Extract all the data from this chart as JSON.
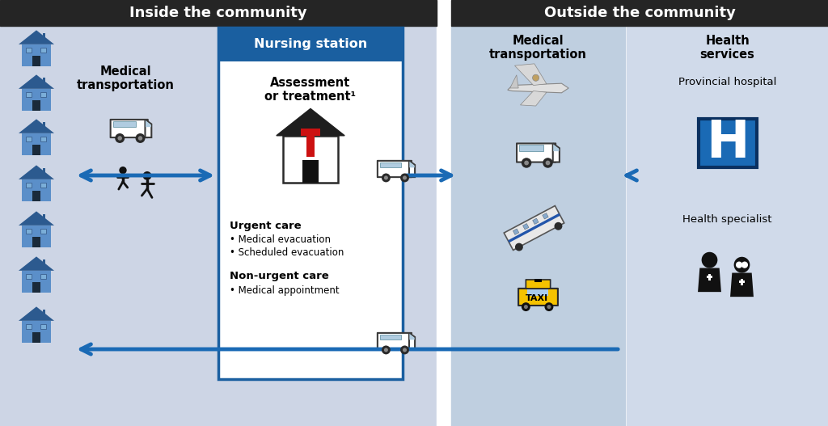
{
  "fig_width": 10.24,
  "fig_height": 5.27,
  "dpi": 100,
  "header_color": "#252525",
  "header_text_color": "#ffffff",
  "left_bg_color": "#cdd5e5",
  "nursing_header_color": "#1a5fa0",
  "nursing_border_color": "#1a5fa0",
  "mid_bg_color": "#bfcfe0",
  "health_bg_color": "#d0daea",
  "white_gap_color": "#ffffff",
  "arrow_color": "#1a6ab5",
  "title_left": "Inside the community",
  "title_right": "Outside the community",
  "nursing_title": "Nursing station",
  "assessment_text": "Assessment\nor treatment¹",
  "urgent_title": "Urgent care",
  "urgent_bullets": [
    "• Medical evacuation",
    "• Scheduled evacuation"
  ],
  "nonurgent_title": "Non-urgent care",
  "nonurgent_bullets": [
    "• Medical appointment"
  ],
  "med_transport_left": "Medical\ntransportation",
  "med_transport_right": "Medical\ntransportation",
  "health_services": "Health\nservices",
  "provincial_hospital": "Provincial hospital",
  "health_specialist": "Health specialist",
  "house_color": "#5b8fc9",
  "house_roof_color": "#2c5a8f",
  "house_chimney_color": "#2c5a8f",
  "cross_color": "#cc1111",
  "roof_dark": "#1a1a1a",
  "van_window_color": "#b0cce0",
  "hospital_blue": "#1a6ab5"
}
